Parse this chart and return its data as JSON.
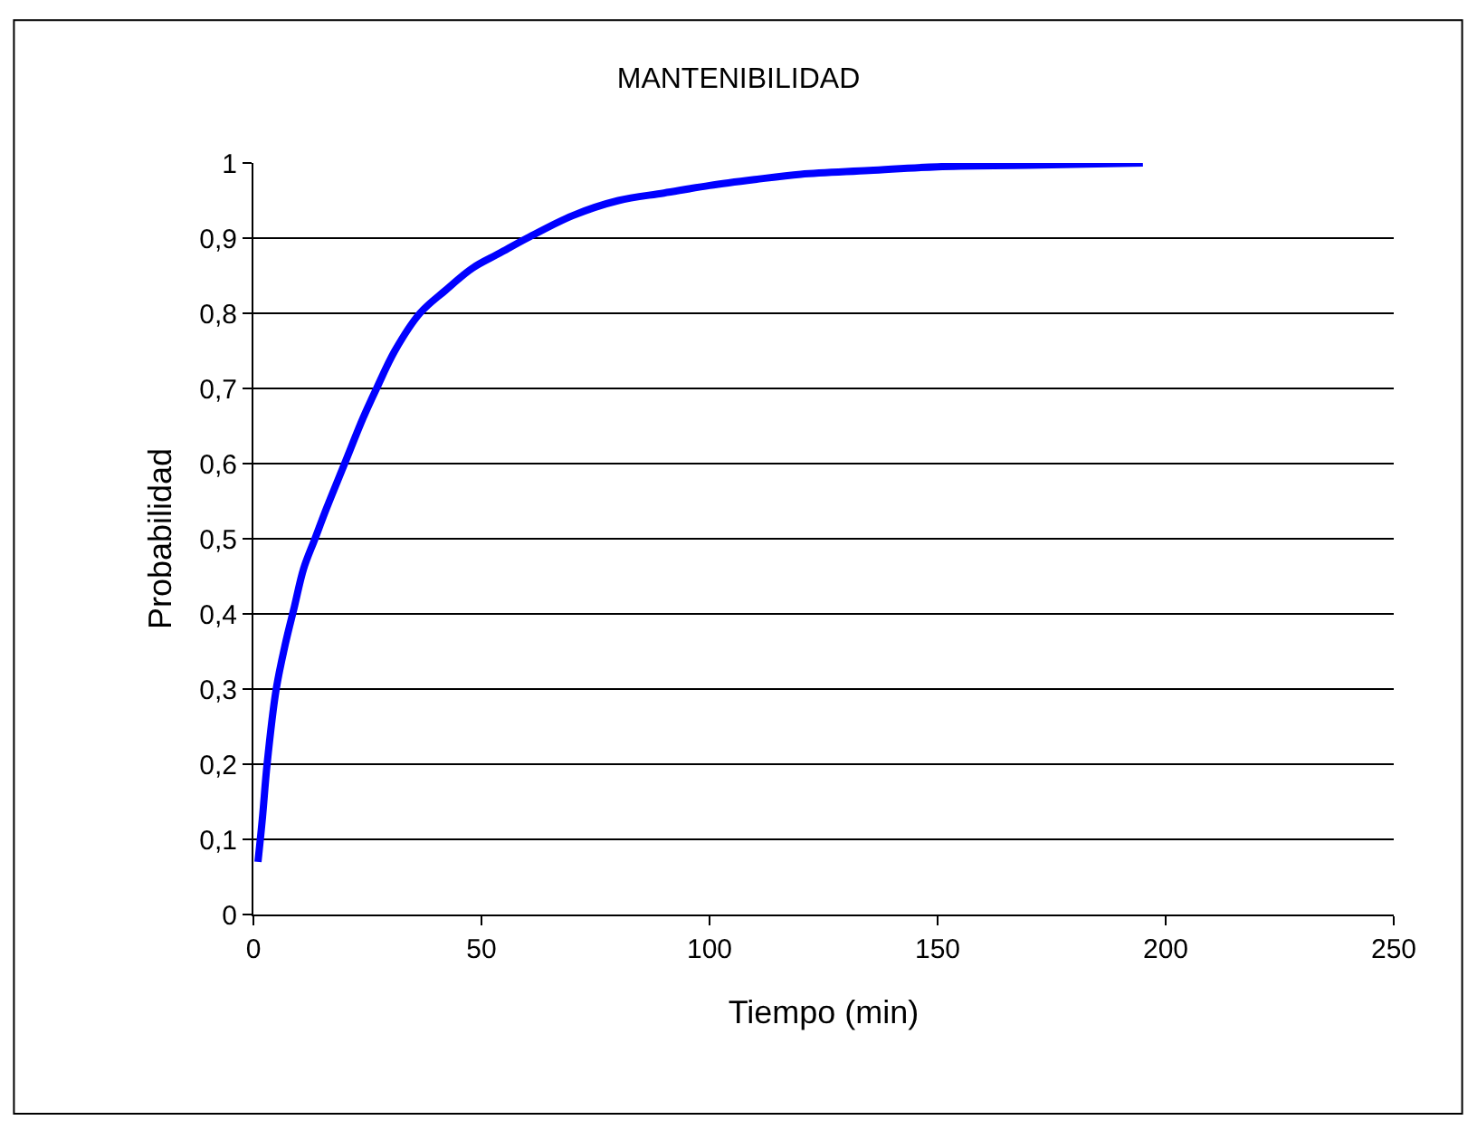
{
  "chart_data": {
    "type": "line",
    "title": "MANTENIBILIDAD",
    "xlabel": "Tiempo (min)",
    "ylabel": "Probabilidad",
    "series": [
      {
        "color": "#0000ff",
        "x": [
          1,
          2,
          3,
          5,
          7,
          9,
          11,
          13.5,
          16,
          20,
          24,
          27,
          31,
          36.5,
          42,
          48,
          54,
          60,
          70,
          80,
          90,
          100,
          110,
          120,
          135,
          150,
          170,
          195
        ],
        "values": [
          0.07,
          0.13,
          0.2,
          0.3,
          0.36,
          0.41,
          0.46,
          0.5,
          0.54,
          0.6,
          0.66,
          0.7,
          0.75,
          0.8,
          0.83,
          0.86,
          0.88,
          0.9,
          0.93,
          0.95,
          0.96,
          0.97,
          0.978,
          0.985,
          0.99,
          0.995,
          0.997,
          1.0
        ]
      }
    ],
    "xlim": [
      0,
      250
    ],
    "xticks": [
      0,
      50,
      100,
      150,
      200,
      250
    ],
    "ylim": [
      0,
      1
    ],
    "yticks": [
      0,
      {
        "value": 0.1,
        "label": "0,1"
      },
      {
        "value": 0.2,
        "label": "0,2"
      },
      {
        "value": 0.3,
        "label": "0,3"
      },
      {
        "value": 0.4,
        "label": "0,4"
      },
      {
        "value": 0.5,
        "label": "0,5"
      },
      {
        "value": 0.6,
        "label": "0,6"
      },
      {
        "value": 0.7,
        "label": "0,7"
      },
      {
        "value": 0.8,
        "label": "0,8"
      },
      {
        "value": 0.9,
        "label": "0,9"
      },
      1
    ],
    "grid": "y",
    "marker": "none",
    "line_style": "solid"
  }
}
